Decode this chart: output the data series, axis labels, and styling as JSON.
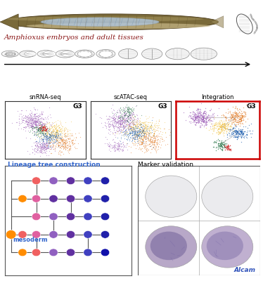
{
  "title": "Amphioxus embryos and adult tissues",
  "title_color": "#8B1A1A",
  "background_color": "#ffffff",
  "panel_titles": {
    "snrna": "snRNA-seq",
    "scatac": "scATAC-seq",
    "integration": "Integration",
    "lineage": "Lineage tree construction",
    "marker": "Marker validation"
  },
  "g3_label": "G3",
  "scatter_colors": {
    "purple": "#9B59B6",
    "yellow": "#F0C040",
    "orange": "#E07820",
    "blue": "#2060B0",
    "green": "#207040",
    "red": "#CC2020",
    "white": "#FFFFFF"
  },
  "lineage_colors": {
    "orange": "#FF8C00",
    "salmon": "#F06060",
    "pink": "#E060A0",
    "medium_purple": "#9060C0",
    "dark_purple": "#6030A0",
    "blue1": "#4040C0",
    "blue2": "#2020AA",
    "blue3": "#1010AA"
  },
  "integration_border_color": "#CC0000",
  "lineage_label": "mesoderm",
  "lineage_label_color": "#3366CC",
  "marker_label": "Alcam",
  "marker_label_color": "#3355BB",
  "fish_body_color": "#7A6A3A",
  "fish_belly_color": "#C8B888",
  "fish_inner_color": "#B0C8E0",
  "embryo_fill": "#F8F8F8",
  "embryo_edge": "#888888"
}
